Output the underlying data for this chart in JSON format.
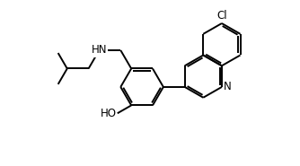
{
  "bg_color": "#ffffff",
  "line_color": "#000000",
  "line_width": 1.4,
  "font_size": 8.5,
  "cl_label": "Cl",
  "n_label": "N",
  "hn_label": "HN",
  "ho_label": "HO"
}
